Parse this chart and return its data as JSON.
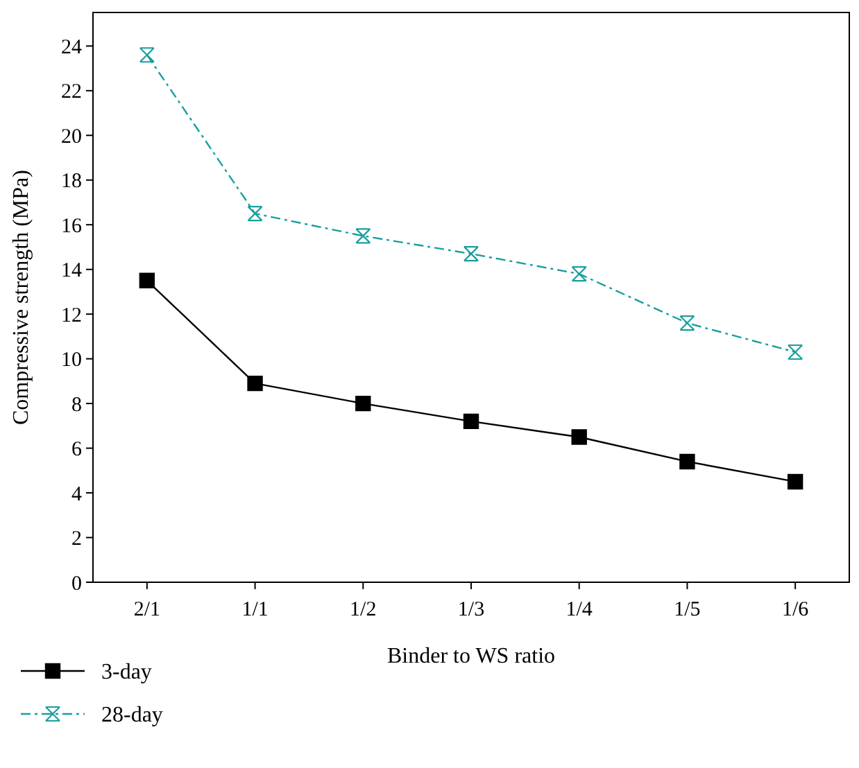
{
  "chart_data": {
    "type": "line",
    "xlabel": "Binder to WS ratio",
    "ylabel": "Compressive strength (MPa)",
    "categories": [
      "2/1",
      "1/1",
      "1/2",
      "1/3",
      "1/4",
      "1/5",
      "1/6"
    ],
    "ylim": [
      0,
      25.5
    ],
    "yticks": [
      0,
      2,
      4,
      6,
      8,
      10,
      12,
      14,
      16,
      18,
      20,
      22,
      24
    ],
    "legend": "bottom",
    "series": [
      {
        "name": "3-day",
        "color": "#000000",
        "marker": "square",
        "line_style": "solid",
        "values": [
          13.5,
          8.9,
          8.0,
          7.2,
          6.5,
          5.4,
          4.5
        ]
      },
      {
        "name": "28-day",
        "color": "#1a9e9e",
        "marker": "cross",
        "line_style": "dashdot",
        "values": [
          23.6,
          16.5,
          15.5,
          14.7,
          13.8,
          11.6,
          10.3
        ]
      }
    ]
  }
}
